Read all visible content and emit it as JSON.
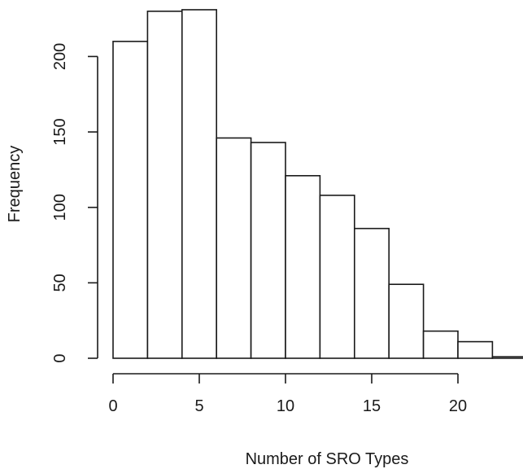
{
  "chart_data": {
    "type": "bar",
    "title": "",
    "xlabel": "Number of SRO Types",
    "ylabel": "Frequency",
    "bins": [
      {
        "x0": 0,
        "x1": 2,
        "count": 210
      },
      {
        "x0": 2,
        "x1": 4,
        "count": 230
      },
      {
        "x0": 4,
        "x1": 6,
        "count": 231
      },
      {
        "x0": 6,
        "x1": 8,
        "count": 146
      },
      {
        "x0": 8,
        "x1": 10,
        "count": 143
      },
      {
        "x0": 10,
        "x1": 12,
        "count": 121
      },
      {
        "x0": 12,
        "x1": 14,
        "count": 108
      },
      {
        "x0": 14,
        "x1": 16,
        "count": 86
      },
      {
        "x0": 16,
        "x1": 18,
        "count": 49
      },
      {
        "x0": 18,
        "x1": 20,
        "count": 18
      },
      {
        "x0": 20,
        "x1": 22,
        "count": 11
      },
      {
        "x0": 22,
        "x1": 24,
        "count": 1
      }
    ],
    "x_ticks": [
      0,
      5,
      10,
      15,
      20
    ],
    "y_ticks": [
      0,
      50,
      100,
      150,
      200
    ],
    "xlim": [
      0,
      24
    ],
    "ylim": [
      0,
      231
    ],
    "grid": false,
    "legend": false,
    "bar_fill": "#ffffff",
    "bar_stroke": "#1a1a1a"
  }
}
